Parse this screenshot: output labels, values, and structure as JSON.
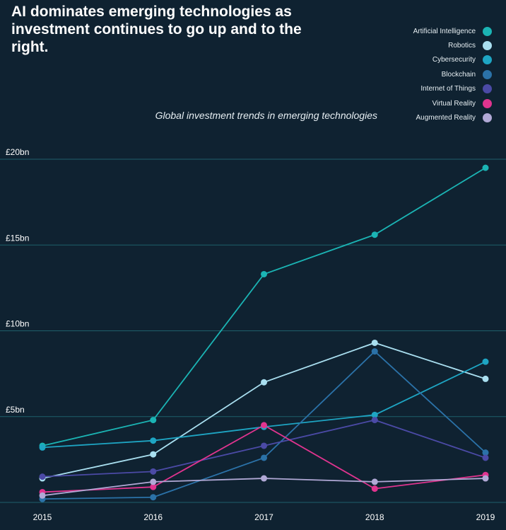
{
  "headline": "AI dominates emerging technologies as investment continues to go up and to the right.",
  "chart_data": {
    "type": "line",
    "title": "Global investment trends in emerging technologies",
    "xlabel": "",
    "ylabel": "",
    "x": [
      "2015",
      "2016",
      "2017",
      "2018",
      "2019"
    ],
    "ylim": [
      0,
      20
    ],
    "y_ticks": [
      "£5bn",
      "£10bn",
      "£15bn",
      "£20bn"
    ],
    "grid": "horizontal",
    "legend_placement": "top-right",
    "series": [
      {
        "name": "Artificial Intelligence",
        "color": "#1bb4b4",
        "values": [
          3.3,
          4.8,
          13.3,
          15.6,
          19.5
        ]
      },
      {
        "name": "Robotics",
        "color": "#a9dff0",
        "values": [
          1.4,
          2.8,
          7.0,
          9.3,
          7.2
        ]
      },
      {
        "name": "Cybersecurity",
        "color": "#1ea5c3",
        "values": [
          3.2,
          3.6,
          4.4,
          5.1,
          8.2
        ]
      },
      {
        "name": "Blockchain",
        "color": "#2b72a8",
        "values": [
          0.2,
          0.3,
          2.6,
          8.8,
          2.9
        ]
      },
      {
        "name": "Internet of Things",
        "color": "#4b4aa6",
        "values": [
          1.5,
          1.8,
          3.3,
          4.8,
          2.6
        ]
      },
      {
        "name": "Virtual  Reality",
        "color": "#e0348f",
        "values": [
          0.6,
          0.9,
          4.5,
          0.8,
          1.6
        ]
      },
      {
        "name": "Augmented Reality",
        "color": "#b1a9d6",
        "values": [
          0.4,
          1.2,
          1.4,
          1.2,
          1.4
        ]
      }
    ]
  }
}
